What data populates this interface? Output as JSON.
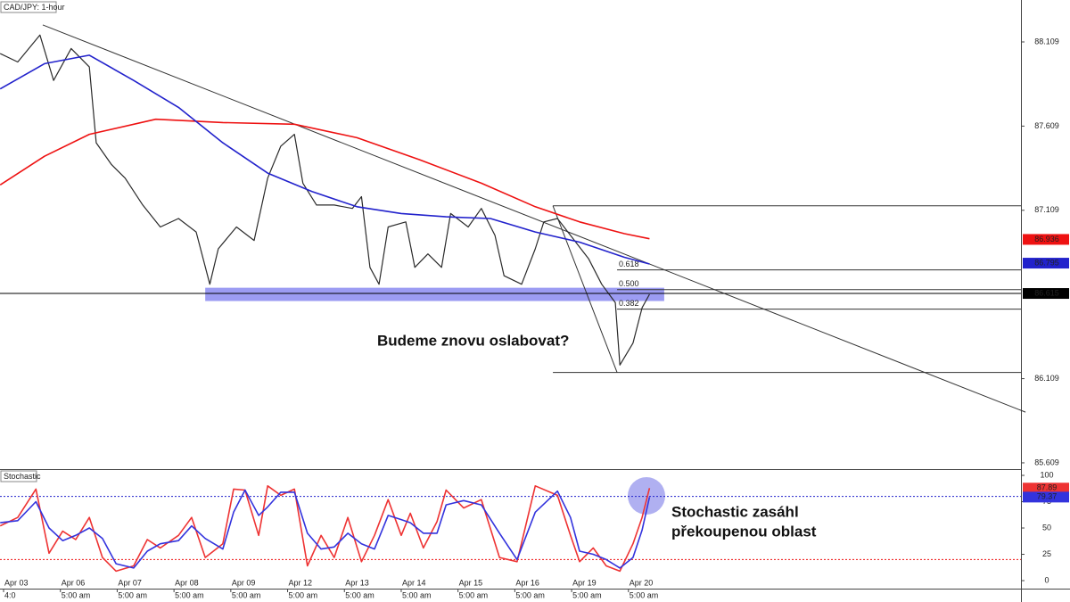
{
  "chart_data": [
    {
      "type": "line",
      "title": "CAD/JPY: 1-hour",
      "xlim": [
        -0.063,
        17.91
      ],
      "ylim": [
        85.577,
        88.358
      ],
      "yticks": [
        88.109,
        87.609,
        87.109,
        86.109,
        85.609
      ],
      "series": [
        {
          "color": "#2a2a2a",
          "x": [
            -0.06,
            0.25,
            0.64,
            0.88,
            1.19,
            1.51,
            1.63,
            1.9,
            2.14,
            2.45,
            2.76,
            3.08,
            3.39,
            3.63,
            3.78,
            4.1,
            4.41,
            4.65,
            4.88,
            5.12,
            5.27,
            5.51,
            5.82,
            6.14,
            6.3,
            6.45,
            6.61,
            6.77,
            7.08,
            7.24,
            7.47,
            7.71,
            7.87,
            8.18,
            8.41,
            8.65,
            8.81,
            9.12,
            9.36,
            9.51,
            9.75,
            9.98,
            10.3,
            10.53,
            10.77,
            10.85,
            11.08,
            11.24,
            11.37
          ],
          "values": [
            88.04,
            87.99,
            88.15,
            87.88,
            88.07,
            87.96,
            87.51,
            87.38,
            87.3,
            87.14,
            87.01,
            87.06,
            86.98,
            86.67,
            86.88,
            87.01,
            86.93,
            87.3,
            87.49,
            87.56,
            87.27,
            87.14,
            87.14,
            87.12,
            87.19,
            86.77,
            86.67,
            87.01,
            87.04,
            86.77,
            86.85,
            86.77,
            87.09,
            87.01,
            87.12,
            86.96,
            86.72,
            86.67,
            86.88,
            87.04,
            87.06,
            86.96,
            86.82,
            86.67,
            86.56,
            86.19,
            86.32,
            86.53,
            86.61
          ]
        },
        {
          "color": "#ee1111",
          "x": [
            -0.06,
            0.72,
            1.51,
            2.68,
            3.86,
            5.12,
            6.22,
            7.32,
            8.41,
            9.36,
            10.14,
            10.93,
            11.37
          ],
          "values": [
            87.26,
            87.43,
            87.56,
            87.65,
            87.63,
            87.62,
            87.54,
            87.41,
            87.27,
            87.13,
            87.04,
            86.97,
            86.94
          ]
        },
        {
          "color": "#2222cc",
          "x": [
            -0.06,
            0.72,
            1.51,
            2.29,
            3.08,
            3.86,
            4.65,
            5.43,
            6.22,
            7.0,
            7.79,
            8.57,
            9.36,
            10.14,
            10.93,
            11.37
          ],
          "values": [
            87.83,
            87.98,
            88.03,
            87.88,
            87.72,
            87.51,
            87.33,
            87.22,
            87.13,
            87.09,
            87.07,
            87.06,
            86.98,
            86.92,
            86.83,
            86.79
          ]
        }
      ],
      "price_labels": [
        {
          "value": 86.936,
          "color": "#ee1111"
        },
        {
          "value": 86.795,
          "color": "#2222cc"
        },
        {
          "value": 86.615,
          "color": "#000000"
        }
      ],
      "trendline": {
        "x": [
          0.69,
          17.99
        ],
        "y": [
          88.21,
          85.91
        ]
      },
      "zone": {
        "x": [
          3.55,
          11.63
        ],
        "y": [
          86.57,
          86.649
        ]
      },
      "fib": {
        "x": [
          9.67,
          10.8
        ],
        "high": 87.136,
        "low": 86.146,
        "levels": [
          {
            "value": 86.755,
            "label": "0.618"
          },
          {
            "value": 86.638,
            "label": "0.500"
          },
          {
            "value": 86.522,
            "label": "0.382"
          }
        ]
      },
      "annotation": "Budeme znovu oslabovat?"
    },
    {
      "type": "line",
      "title": "Stochastic",
      "xlim": [
        -0.063,
        17.91
      ],
      "ylim": [
        -7.6,
        105.1
      ],
      "yticks": [
        100,
        75,
        50,
        25,
        0
      ],
      "levels": [
        {
          "value": 80,
          "color": "#2222cc"
        },
        {
          "value": 20,
          "color": "#ee1111"
        }
      ],
      "xticks": [
        {
          "value": 0,
          "label": "Apr 03"
        },
        {
          "value": 1,
          "label": "Apr 06"
        },
        {
          "value": 2,
          "label": "Apr 07"
        },
        {
          "value": 3,
          "label": "Apr 08"
        },
        {
          "value": 4,
          "label": "Apr 09"
        },
        {
          "value": 5,
          "label": "Apr 12"
        },
        {
          "value": 6,
          "label": "Apr 13"
        },
        {
          "value": 7,
          "label": "Apr 14"
        },
        {
          "value": 8,
          "label": "Apr 15"
        },
        {
          "value": 9,
          "label": "Apr 16"
        },
        {
          "value": 10,
          "label": "Apr 19"
        },
        {
          "value": 11,
          "label": "Apr 20"
        }
      ],
      "xtick_sublabels": [
        "4:0",
        "5:00 am",
        "5:00 am",
        "5:00 am",
        "5:00 am",
        "5:00 am",
        "5:00 am",
        "5:00 am",
        "5:00 am",
        "5:00 am",
        "5:00 am",
        "5:00 am"
      ],
      "series": [
        {
          "color": "#ee3333",
          "x": [
            -0.06,
            0.25,
            0.57,
            0.8,
            1.04,
            1.27,
            1.51,
            1.74,
            1.98,
            2.29,
            2.53,
            2.76,
            3.08,
            3.31,
            3.55,
            3.86,
            4.05,
            4.25,
            4.49,
            4.65,
            4.88,
            5.12,
            5.35,
            5.59,
            5.82,
            6.06,
            6.3,
            6.53,
            6.77,
            7.0,
            7.16,
            7.39,
            7.63,
            7.79,
            8.1,
            8.41,
            8.73,
            9.04,
            9.36,
            9.75,
            9.98,
            10.14,
            10.38,
            10.61,
            10.85,
            11.08,
            11.24,
            11.37
          ],
          "values": [
            52,
            60,
            87,
            26,
            47,
            39,
            60,
            22,
            9,
            14,
            39,
            31,
            43,
            60,
            22,
            35,
            87,
            86,
            43,
            90,
            81,
            87,
            14,
            43,
            22,
            60,
            18,
            43,
            77,
            43,
            64,
            31,
            56,
            86,
            69,
            77,
            22,
            18,
            90,
            81,
            43,
            18,
            31,
            14,
            9,
            35,
            60,
            87.89
          ]
        },
        {
          "color": "#3333dd",
          "x": [
            -0.06,
            0.25,
            0.57,
            0.8,
            1.04,
            1.27,
            1.51,
            1.74,
            1.98,
            2.29,
            2.53,
            2.76,
            3.08,
            3.31,
            3.55,
            3.86,
            4.05,
            4.25,
            4.49,
            4.65,
            4.88,
            5.12,
            5.35,
            5.59,
            5.82,
            6.06,
            6.3,
            6.53,
            6.77,
            7.0,
            7.16,
            7.39,
            7.63,
            7.79,
            8.1,
            8.41,
            8.73,
            9.04,
            9.36,
            9.75,
            9.98,
            10.14,
            10.38,
            10.61,
            10.85,
            11.08,
            11.24,
            11.37
          ],
          "values": [
            55,
            57,
            75,
            50,
            38,
            43,
            50,
            40,
            16,
            12,
            28,
            35,
            38,
            52,
            40,
            30,
            65,
            86,
            62,
            70,
            84,
            84,
            45,
            30,
            32,
            45,
            35,
            30,
            62,
            58,
            55,
            45,
            45,
            72,
            76,
            72,
            45,
            20,
            65,
            85,
            60,
            28,
            25,
            20,
            12,
            22,
            48,
            79.37
          ]
        }
      ],
      "annotation_lines": [
        "Stochastic zasáhl",
        "překoupenou oblast"
      ]
    }
  ]
}
